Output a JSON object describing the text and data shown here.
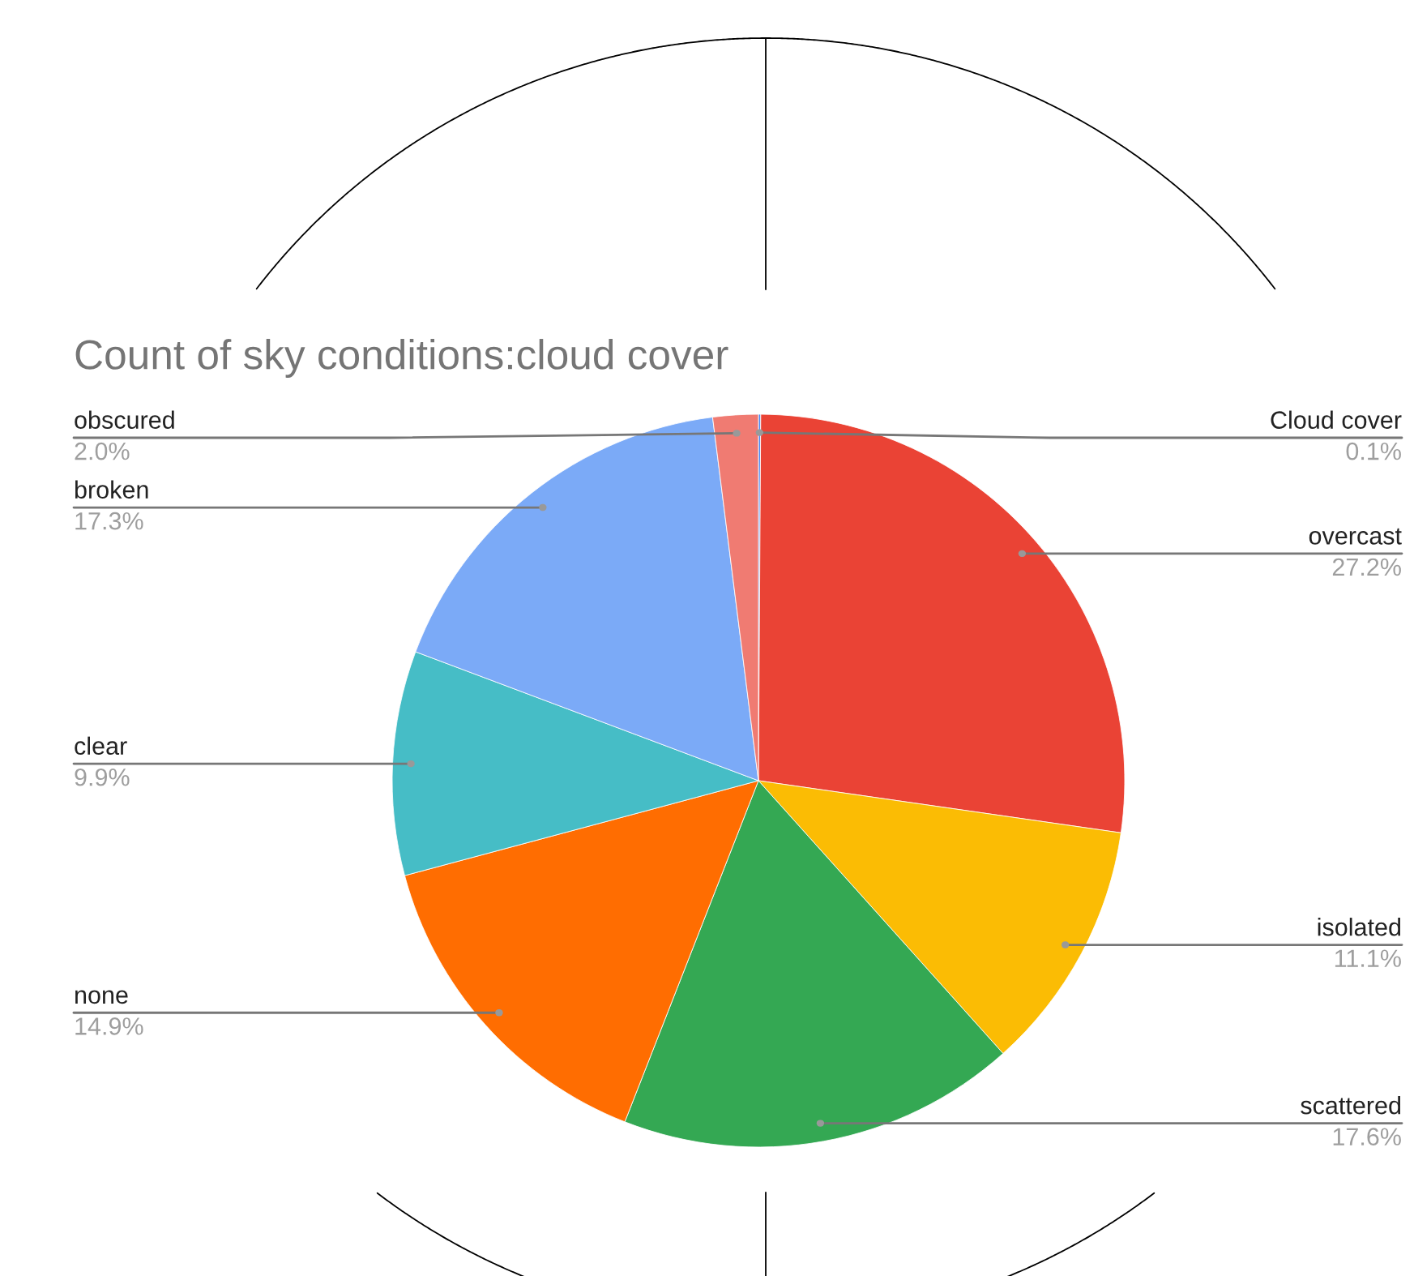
{
  "chart_data": {
    "type": "pie",
    "title": "Count of sky conditions:cloud cover",
    "categories": [
      "Cloud cover",
      "overcast",
      "isolated",
      "scattered",
      "none",
      "clear",
      "broken",
      "obscured"
    ],
    "values": [
      0.1,
      27.2,
      11.1,
      17.6,
      14.9,
      9.9,
      17.3,
      2.0
    ],
    "value_labels": [
      "0.1%",
      "27.2%",
      "11.1%",
      "17.6%",
      "14.9%",
      "9.9%",
      "17.3%",
      "2.0%"
    ],
    "colors": [
      "#4285f4",
      "#ea4335",
      "#fbbc04",
      "#34a853",
      "#ff6d01",
      "#46bdc6",
      "#7baaf7",
      "#f07b72"
    ]
  }
}
